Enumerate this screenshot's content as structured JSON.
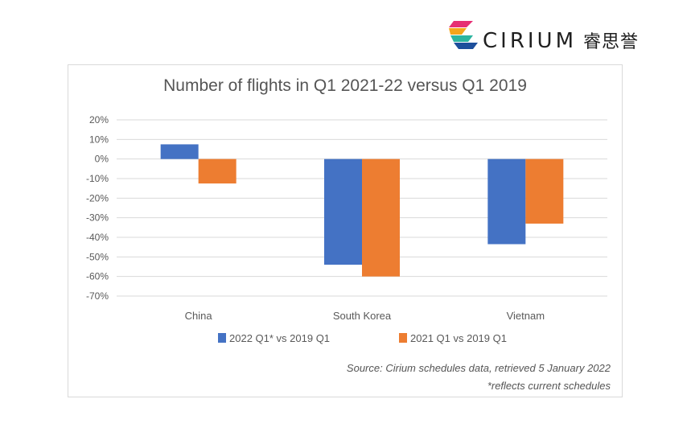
{
  "brand": {
    "name": "CIRIUM",
    "name_cn": "睿思誉",
    "colors": [
      "#e62e73",
      "#f4a51c",
      "#2cb5a0",
      "#1d4f9c"
    ]
  },
  "chart_data": {
    "type": "bar",
    "title": "Number of flights in Q1 2021-22 versus Q1 2019",
    "categories": [
      "China",
      "South Korea",
      "Vietnam"
    ],
    "series": [
      {
        "name": "2022 Q1* vs 2019 Q1",
        "color": "#4472c4",
        "values": [
          7.5,
          -54,
          -43.5
        ]
      },
      {
        "name": "2021 Q1 vs 2019 Q1",
        "color": "#ed7d31",
        "values": [
          -12.5,
          -60,
          -33
        ]
      }
    ],
    "ylim": [
      -70,
      20
    ],
    "yticks": [
      20,
      10,
      0,
      -10,
      -20,
      -30,
      -40,
      -50,
      -60,
      -70
    ],
    "ytick_labels": [
      "20%",
      "10%",
      "0%",
      "-10%",
      "-20%",
      "-30%",
      "-40%",
      "-50%",
      "-60%",
      "-70%"
    ],
    "grid": true,
    "legend": "bottom"
  },
  "notes": {
    "source": "Source:  Cirium schedules data, retrieved 5 January 2022",
    "footnote": "*reflects current schedules"
  }
}
